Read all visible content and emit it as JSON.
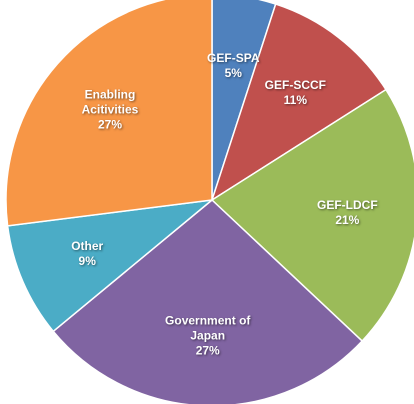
{
  "chart_data": {
    "type": "pie",
    "categories": [
      "GEF-SPA",
      "GEF-SCCF",
      "GEF-LDCF",
      "Government of Japan",
      "Other",
      "Enabling Acitivities"
    ],
    "values": [
      5,
      11,
      21,
      27,
      9,
      27
    ],
    "value_labels": [
      "5%",
      "11%",
      "21%",
      "27%",
      "9%",
      "27%"
    ],
    "colors": [
      "#4f81bd",
      "#c0504d",
      "#9bbb59",
      "#8064a2",
      "#4bacc6",
      "#f79646"
    ]
  }
}
